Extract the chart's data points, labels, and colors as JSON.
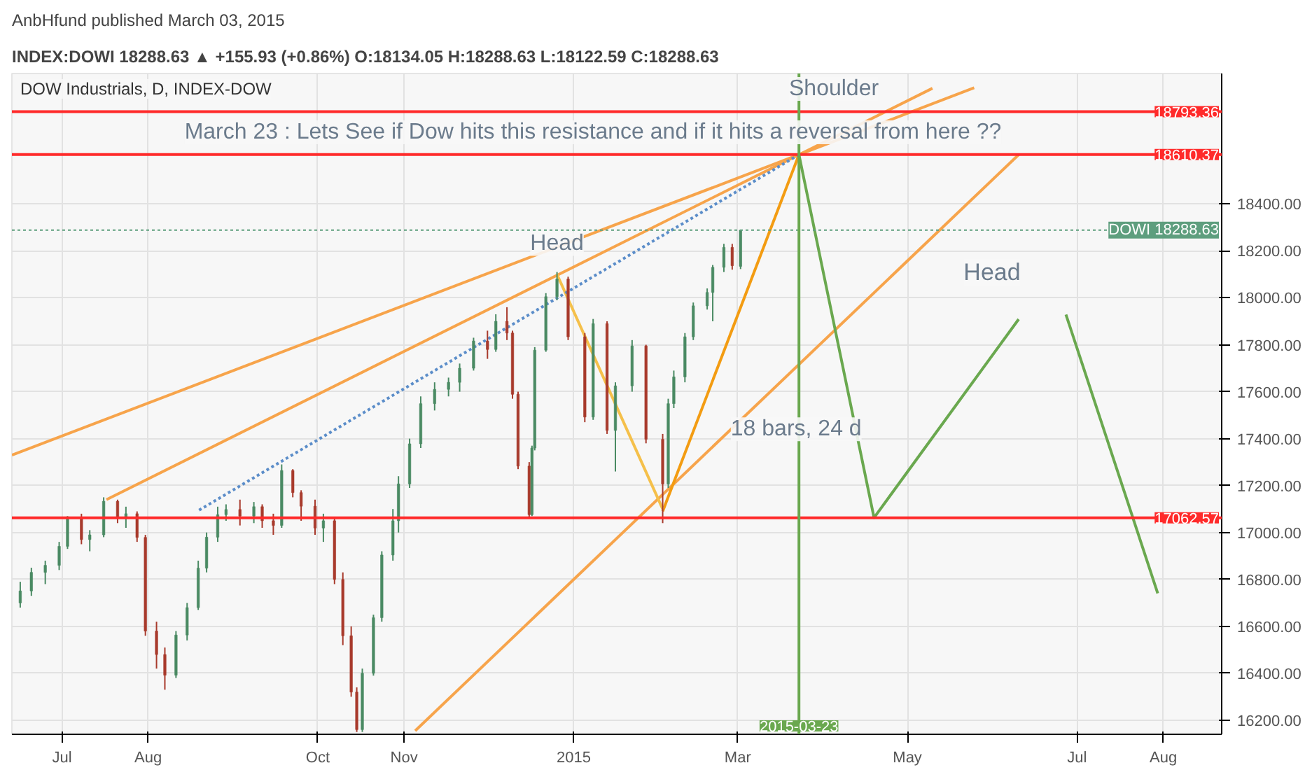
{
  "chart_data": {
    "type": "candlestick",
    "title": "AnbHfund published March 03, 2015",
    "subtitle": "INDEX:DOWI 18288.63 ▲ +155.93 (+0.86%) O:18134.05 H:18288.63 L:18122.59 C:18288.63",
    "x": [
      "2014-06-16",
      "2014-06-20",
      "2014-06-25",
      "2014-06-30",
      "2014-07-03",
      "2014-07-08",
      "2014-07-11",
      "2014-07-16",
      "2014-07-21",
      "2014-07-24",
      "2014-07-28",
      "2014-07-31",
      "2014-08-04",
      "2014-08-07",
      "2014-08-11",
      "2014-08-15",
      "2014-08-19",
      "2014-08-22",
      "2014-08-26",
      "2014-08-29",
      "2014-09-03",
      "2014-09-08",
      "2014-09-11",
      "2014-09-15",
      "2014-09-18",
      "2014-09-22",
      "2014-09-25",
      "2014-09-30",
      "2014-10-03",
      "2014-10-07",
      "2014-10-10",
      "2014-10-13",
      "2014-10-15",
      "2014-10-17",
      "2014-10-21",
      "2014-10-24",
      "2014-10-28",
      "2014-10-30",
      "2014-11-03",
      "2014-11-07",
      "2014-11-12",
      "2014-11-17",
      "2014-11-21",
      "2014-11-26",
      "2014-12-01",
      "2014-12-04",
      "2014-12-08",
      "2014-12-10",
      "2014-12-12",
      "2014-12-16",
      "2014-12-17",
      "2014-12-18",
      "2014-12-22",
      "2014-12-26",
      "2014-12-30",
      "2015-01-05",
      "2015-01-08",
      "2015-01-13",
      "2015-01-16",
      "2015-01-22",
      "2015-01-27",
      "2015-02-02",
      "2015-02-04",
      "2015-02-06",
      "2015-02-10",
      "2015-02-13",
      "2015-02-18",
      "2015-02-20",
      "2015-02-24",
      "2015-02-27",
      "2015-03-02"
    ],
    "ohlc": [
      [
        16700,
        16790,
        16680,
        16751
      ],
      [
        16751,
        16850,
        16730,
        16830
      ],
      [
        16830,
        16880,
        16780,
        16860
      ],
      [
        16860,
        16960,
        16840,
        16941
      ],
      [
        16941,
        17070,
        16930,
        17060
      ],
      [
        17060,
        17080,
        16950,
        16970
      ],
      [
        16970,
        17010,
        16920,
        16990
      ],
      [
        16990,
        17150,
        16980,
        17133
      ],
      [
        17133,
        17140,
        17040,
        17060
      ],
      [
        17060,
        17110,
        17020,
        17080
      ],
      [
        17080,
        17090,
        16960,
        16979
      ],
      [
        16979,
        16990,
        16560,
        16580
      ],
      [
        16580,
        16620,
        16420,
        16480
      ],
      [
        16480,
        16510,
        16330,
        16392
      ],
      [
        16392,
        16580,
        16380,
        16563
      ],
      [
        16563,
        16700,
        16540,
        16680
      ],
      [
        16680,
        16880,
        16670,
        16848
      ],
      [
        16848,
        17000,
        16830,
        16980
      ],
      [
        16980,
        17110,
        16960,
        17076
      ],
      [
        17076,
        17120,
        17050,
        17098
      ],
      [
        17098,
        17140,
        17030,
        17070
      ],
      [
        17070,
        17130,
        17040,
        17110
      ],
      [
        17110,
        17120,
        17020,
        17050
      ],
      [
        17050,
        17080,
        16990,
        17030
      ],
      [
        17030,
        17290,
        17020,
        17264
      ],
      [
        17264,
        17270,
        17150,
        17170
      ],
      [
        17170,
        17180,
        17050,
        17112
      ],
      [
        17112,
        17140,
        16990,
        17019
      ],
      [
        17019,
        17080,
        16960,
        17050
      ],
      [
        17050,
        17060,
        16780,
        16800
      ],
      [
        16800,
        16830,
        16520,
        16560
      ],
      [
        16560,
        16600,
        16300,
        16320
      ],
      [
        16320,
        16340,
        16150,
        16160
      ],
      [
        16160,
        16420,
        16150,
        16400
      ],
      [
        16400,
        16650,
        16390,
        16637
      ],
      [
        16637,
        16920,
        16620,
        16904
      ],
      [
        16904,
        17100,
        16880,
        17050
      ],
      [
        17050,
        17240,
        17000,
        17207
      ],
      [
        17207,
        17400,
        17190,
        17378
      ],
      [
        17378,
        17580,
        17360,
        17549
      ],
      [
        17549,
        17640,
        17520,
        17610
      ],
      [
        17610,
        17660,
        17580,
        17640
      ],
      [
        17640,
        17720,
        17600,
        17700
      ],
      [
        17700,
        17830,
        17690,
        17816
      ],
      [
        17816,
        17860,
        17740,
        17780
      ],
      [
        17780,
        17930,
        17770,
        17900
      ],
      [
        17900,
        17960,
        17820,
        17850
      ],
      [
        17850,
        17860,
        17570,
        17589
      ],
      [
        17589,
        17600,
        17270,
        17283
      ],
      [
        17283,
        17300,
        17062.57,
        17076
      ],
      [
        17076,
        17370,
        17070,
        17360
      ],
      [
        17360,
        17790,
        17350,
        17777
      ],
      [
        17777,
        18020,
        17770,
        18005
      ],
      [
        18005,
        18110,
        17990,
        18080
      ],
      [
        18080,
        18090,
        17820,
        17834
      ],
      [
        17834,
        17850,
        17470,
        17492
      ],
      [
        17492,
        17910,
        17480,
        17890
      ],
      [
        17890,
        17900,
        17420,
        17435
      ],
      [
        17435,
        17640,
        17260,
        17625
      ],
      [
        17625,
        17820,
        17600,
        17795
      ],
      [
        17795,
        17800,
        17380,
        17397
      ],
      [
        17397,
        17420,
        17040,
        17207
      ],
      [
        17207,
        17570,
        17190,
        17549
      ],
      [
        17549,
        17690,
        17530,
        17663
      ],
      [
        17663,
        17850,
        17640,
        17834
      ],
      [
        17834,
        17980,
        17820,
        17966
      ],
      [
        17966,
        18040,
        17950,
        18023
      ],
      [
        18023,
        18140,
        17900,
        18130
      ],
      [
        18130,
        18230,
        18110,
        18215
      ],
      [
        18215,
        18230,
        18120,
        18137
      ],
      [
        18134.05,
        18288.63,
        18122.59,
        18288.63
      ]
    ],
    "series": [
      {
        "type": "line",
        "color": "#f7a44b",
        "x": [
          "2014-06-13",
          "2015-03-23",
          "2015-05-25"
        ],
        "values": [
          17330,
          18610,
          18895
        ]
      },
      {
        "type": "line",
        "color": "#f7a44b",
        "x": [
          "2014-07-17",
          "2015-03-23",
          "2015-05-10"
        ],
        "values": [
          17140,
          18610,
          18893
        ]
      },
      {
        "type": "line",
        "color": "#f7a44b",
        "x": [
          "2014-11-05",
          "2015-06-10"
        ],
        "values": [
          16155,
          18610
        ]
      },
      {
        "type": "line",
        "color": "#f39c12",
        "x": [
          "2015-02-02",
          "2015-03-23"
        ],
        "values": [
          17090,
          18610
        ]
      },
      {
        "type": "line",
        "color": "#f5c04a",
        "x": [
          "2014-12-26",
          "2015-02-02"
        ],
        "values": [
          18100,
          17100
        ]
      },
      {
        "type": "line",
        "color": "#6aa84f",
        "x": [
          "2015-03-23",
          "2015-04-19",
          "2015-06-10"
        ],
        "values": [
          18610,
          17063,
          17909
        ]
      },
      {
        "type": "line",
        "color": "#6aa84f",
        "x": [
          "2015-06-27",
          "2015-07-30"
        ],
        "values": [
          17929,
          16741
        ]
      },
      {
        "type": "line",
        "color": "#5b8dc9",
        "line_style": "dotted",
        "x": [
          "2014-08-19",
          "2015-03-23"
        ],
        "values": [
          17093,
          18610
        ]
      }
    ],
    "xlim": [
      "2014-06-13",
      "2015-08-22"
    ],
    "xticks": [
      {
        "value": "2014-07-01",
        "label": "Jul"
      },
      {
        "value": "2014-08-01",
        "label": "Aug"
      },
      {
        "value": "2014-10-01",
        "label": "Oct"
      },
      {
        "value": "2014-11-01",
        "label": "Nov"
      },
      {
        "value": "2015-01-01",
        "label": "2015"
      },
      {
        "value": "2015-03-01",
        "label": "Mar"
      },
      {
        "value": "2015-05-01",
        "label": "May"
      },
      {
        "value": "2015-07-01",
        "label": "Jul"
      },
      {
        "value": "2015-08-01",
        "label": "Aug"
      }
    ],
    "ylim": [
      16140,
      18956
    ],
    "yticks": [
      {
        "value": 16200,
        "label": "16200.00"
      },
      {
        "value": 16400,
        "label": "16400.00"
      },
      {
        "value": 16600,
        "label": "16600.00"
      },
      {
        "value": 16800,
        "label": "16800.00"
      },
      {
        "value": 17000,
        "label": "17000.00"
      },
      {
        "value": 17200,
        "label": "17200.00"
      },
      {
        "value": 17400,
        "label": "17400.00"
      },
      {
        "value": 17600,
        "label": "17600.00"
      },
      {
        "value": 17800,
        "label": "17800.00"
      },
      {
        "value": 18000,
        "label": "18000.00"
      },
      {
        "value": 18200,
        "label": "18200.00"
      },
      {
        "value": 18400,
        "label": "18400.00"
      }
    ],
    "ref_lines": [
      {
        "axis": "y",
        "value": 18793.36,
        "label": "18793.36",
        "color": "#ff2a2a"
      },
      {
        "axis": "y",
        "value": 18610.37,
        "label": "18610.37",
        "color": "#ff2a2a"
      },
      {
        "axis": "y",
        "value": 17062.57,
        "label": "17062.57",
        "color": "#ff2a2a"
      },
      {
        "axis": "y",
        "value": 18288.63,
        "label": "DOWI 18288.63",
        "color": "#5e9e7e",
        "line_style": "dotted"
      },
      {
        "axis": "x",
        "value": "2015-03-23",
        "label": "2015-03-23",
        "color": "#6aa84f"
      }
    ],
    "annotations": [
      "DOW Industrials, D, INDEX-DOW",
      "March 23 : Lets See if Dow hits this resistance and if it hits a reversal from here ??",
      "Shoulder",
      "Head",
      {
        "text": "Head",
        "x": "2014-12-26",
        "y": 18230
      },
      {
        "text": "18 bars, 24 d",
        "x": "2015-03-22",
        "y": 17440
      }
    ],
    "grid": true
  }
}
